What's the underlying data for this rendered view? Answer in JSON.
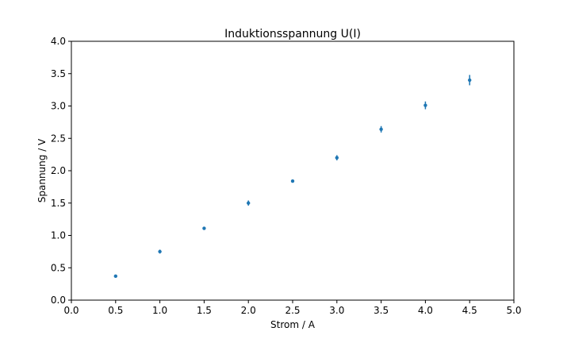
{
  "chart_data": {
    "type": "scatter",
    "title": "Induktionsspannung U(I)",
    "xlabel": "Strom / A",
    "ylabel": "Spannung  / V",
    "xlim": [
      0.0,
      5.0
    ],
    "ylim": [
      0.0,
      4.0
    ],
    "xticks": [
      "0.0",
      "0.5",
      "1.0",
      "1.5",
      "2.0",
      "2.5",
      "3.0",
      "3.5",
      "4.0",
      "4.5",
      "5.0"
    ],
    "yticks": [
      "0.0",
      "0.5",
      "1.0",
      "1.5",
      "2.0",
      "2.5",
      "3.0",
      "3.5",
      "4.0"
    ],
    "grid": false,
    "error_bars": true,
    "color": "#1f77b4",
    "series": [
      {
        "x": [
          0.5,
          1.0,
          1.5,
          2.0,
          2.5,
          3.0,
          3.5,
          4.0,
          4.5
        ],
        "y": [
          0.37,
          0.75,
          1.11,
          1.5,
          1.84,
          2.2,
          2.64,
          3.01,
          3.4
        ],
        "yerr": [
          0.015,
          0.03,
          0.02,
          0.04,
          0.025,
          0.04,
          0.05,
          0.06,
          0.08
        ]
      }
    ]
  }
}
